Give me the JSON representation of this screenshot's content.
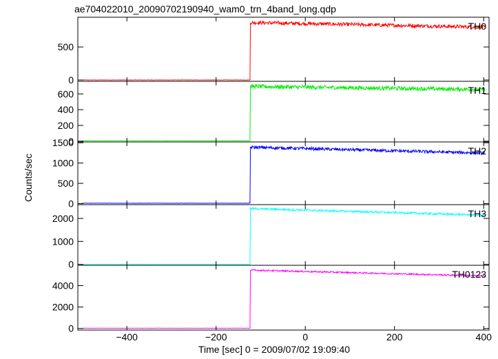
{
  "chart_data": {
    "type": "line",
    "title": "ae704022010_20090702190940_wam0_trn_4band_long.qdp",
    "xlabel": "Time [sec] 0 = 2009/07/02 19:09:40",
    "ylabel": "Counts/sec",
    "xlim": [
      -510,
      412
    ],
    "xticks": [
      -400,
      -200,
      0,
      200,
      400
    ],
    "xtick_labels": [
      "−400",
      "−200",
      "0",
      "200",
      "400"
    ],
    "grid": false,
    "legend": "none",
    "panels": [
      {
        "label": "TH0",
        "color": "#ff0000",
        "ylim": [
          -20,
          950
        ],
        "yticks": [
          0,
          500
        ],
        "ytick_labels": [
          "0",
          "500"
        ],
        "profile": {
          "t0": -123,
          "pre": 0,
          "peak": 870,
          "end": 800,
          "noise": 28
        }
      },
      {
        "label": "TH1",
        "color": "#00ee00",
        "ylim": [
          -10,
          760
        ],
        "yticks": [
          0,
          200,
          400,
          600
        ],
        "ytick_labels": [
          "0",
          "200",
          "400",
          "600"
        ],
        "profile": {
          "t0": -123,
          "pre": 5,
          "peak": 695,
          "end": 655,
          "noise": 26
        }
      },
      {
        "label": "TH2",
        "color": "#0000ff",
        "ylim": [
          -25,
          1520
        ],
        "yticks": [
          0,
          500,
          1000,
          1500
        ],
        "ytick_labels": [
          "0",
          "500",
          "1000",
          "1500"
        ],
        "profile": {
          "t0": -123,
          "pre": 10,
          "peak": 1390,
          "end": 1245,
          "noise": 38
        }
      },
      {
        "label": "TH3",
        "color": "#00ffff",
        "ylim": [
          -40,
          2600
        ],
        "yticks": [
          0,
          1000,
          2000
        ],
        "ytick_labels": [
          "0",
          "1000",
          "2000"
        ],
        "profile": {
          "t0": -123,
          "pre": 0,
          "peak": 2430,
          "end": 2140,
          "noise": 45
        }
      },
      {
        "label": "TH0123",
        "color": "#ff00ff",
        "ylim": [
          -150,
          5900
        ],
        "yticks": [
          0,
          2000,
          4000
        ],
        "ytick_labels": [
          "0",
          "2000",
          "4000"
        ],
        "profile": {
          "t0": -123,
          "pre": 20,
          "peak": 5450,
          "end": 4900,
          "noise": 70
        }
      }
    ]
  }
}
